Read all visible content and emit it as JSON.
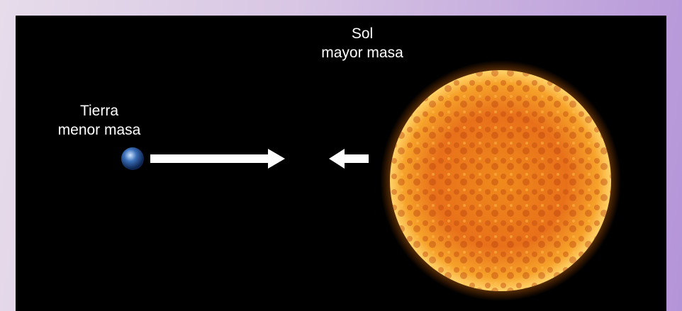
{
  "sun": {
    "name": "Sol",
    "caption": "mayor masa"
  },
  "earth": {
    "name": "Tierra",
    "caption": "menor masa"
  }
}
